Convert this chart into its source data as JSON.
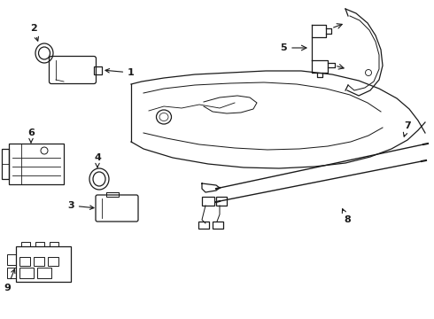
{
  "bg_color": "#ffffff",
  "line_color": "#1a1a1a",
  "parts": [
    1,
    2,
    3,
    4,
    5,
    6,
    7,
    8,
    9
  ]
}
